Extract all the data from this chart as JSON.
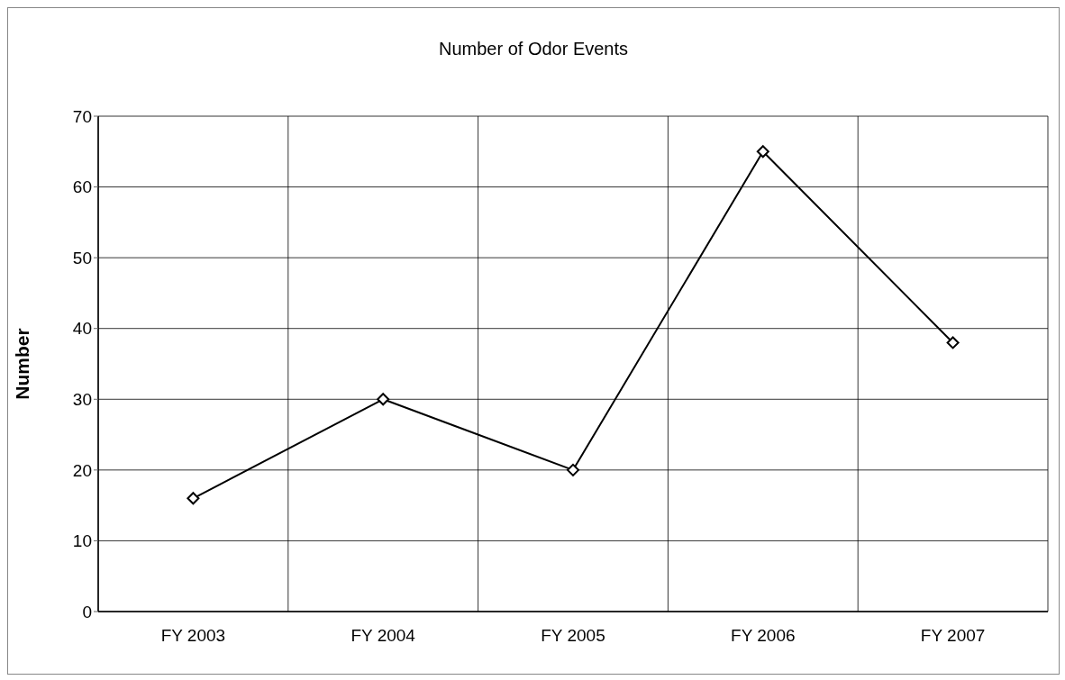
{
  "chart_data": {
    "type": "line",
    "title": "Number of Odor Events",
    "ylabel": "Number",
    "categories": [
      "FY 2003",
      "FY 2004",
      "FY 2005",
      "FY 2006",
      "FY 2007"
    ],
    "series": [
      {
        "color": "#000000",
        "values": [
          16,
          30,
          20,
          65,
          38
        ]
      }
    ],
    "ylim": [
      0,
      70
    ],
    "yticks": [
      0,
      10,
      20,
      30,
      40,
      50,
      60,
      70
    ],
    "grid": true,
    "marker": "diamond",
    "line_style": "solid"
  }
}
